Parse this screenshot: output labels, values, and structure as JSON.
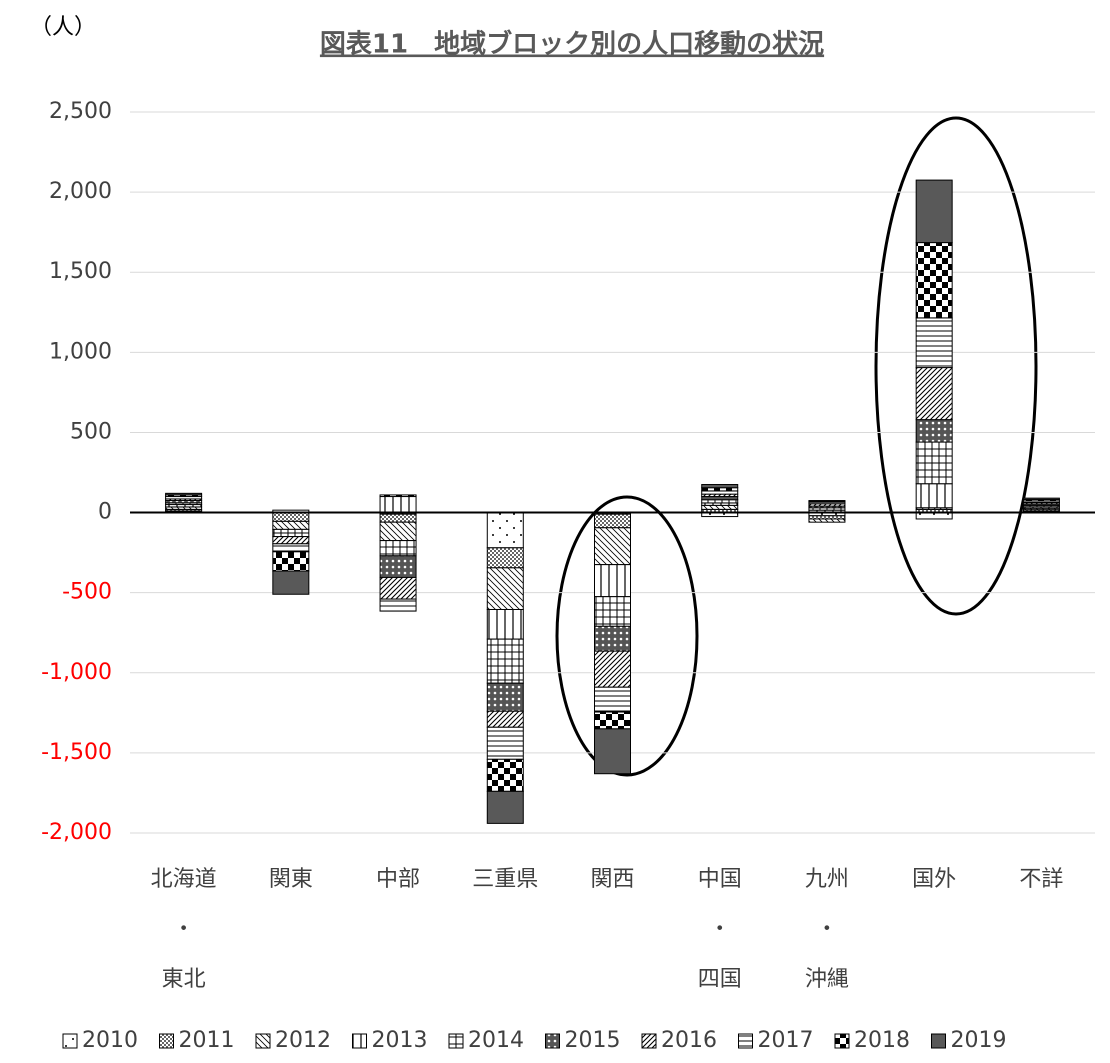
{
  "chart_data": {
    "type": "stacked-bar",
    "title": "図表11　地域ブロック別の人口移動の状況",
    "unit_label": "（人）",
    "categories": [
      [
        "北海道",
        "・",
        "東北"
      ],
      [
        "関東"
      ],
      [
        "中部"
      ],
      [
        "三重県"
      ],
      [
        "関西"
      ],
      [
        "中国",
        "・",
        "四国"
      ],
      [
        "九州",
        "・",
        "沖縄"
      ],
      [
        "国外"
      ],
      [
        "不詳"
      ]
    ],
    "series": [
      {
        "name": "2010",
        "color": "#000000",
        "pattern": "sparse-dots",
        "values": [
          10,
          15,
          -10,
          -220,
          -10,
          -25,
          -20,
          -40,
          9
        ]
      },
      {
        "name": "2011",
        "color": "#000000",
        "pattern": "dense-dots",
        "values": [
          10,
          -55,
          -50,
          -125,
          -85,
          20,
          -20,
          20,
          9
        ]
      },
      {
        "name": "2012",
        "color": "#000000",
        "pattern": "diagonal",
        "values": [
          15,
          -50,
          -115,
          -260,
          -230,
          25,
          -20,
          10,
          9
        ]
      },
      {
        "name": "2013",
        "color": "#000000",
        "pattern": "vertical",
        "values": [
          15,
          0,
          100,
          -185,
          -200,
          15,
          15,
          150,
          9
        ]
      },
      {
        "name": "2014",
        "color": "#000000",
        "pattern": "grid",
        "values": [
          10,
          -45,
          -95,
          -275,
          -185,
          20,
          15,
          260,
          9
        ]
      },
      {
        "name": "2015",
        "color": "#000000",
        "pattern": "dark-dots",
        "values": [
          15,
          0,
          -135,
          -175,
          -155,
          20,
          10,
          140,
          9
        ]
      },
      {
        "name": "2016",
        "color": "#000000",
        "pattern": "hatch",
        "values": [
          10,
          -45,
          -135,
          -100,
          -225,
          15,
          15,
          325,
          9
        ]
      },
      {
        "name": "2017",
        "color": "#000000",
        "pattern": "horizontal",
        "values": [
          15,
          -50,
          -75,
          -200,
          -155,
          20,
          10,
          310,
          9
        ]
      },
      {
        "name": "2018",
        "color": "#000000",
        "pattern": "checker",
        "values": [
          10,
          -120,
          10,
          -200,
          -105,
          20,
          5,
          470,
          9
        ]
      },
      {
        "name": "2019",
        "color": "#595959",
        "pattern": "solid",
        "values": [
          10,
          -145,
          0,
          -200,
          -280,
          20,
          5,
          390,
          9
        ]
      }
    ],
    "ylim": [
      -2000,
      2500
    ],
    "yticks": [
      {
        "value": -2000,
        "label": "-2,000"
      },
      {
        "value": -1500,
        "label": "-1,500"
      },
      {
        "value": -1000,
        "label": "-1,000"
      },
      {
        "value": -500,
        "label": "-500"
      },
      0,
      {
        "value": 500,
        "label": "500"
      },
      {
        "value": 1000,
        "label": "1,000"
      },
      {
        "value": 1500,
        "label": "1,500"
      },
      {
        "value": 2000,
        "label": "2,000"
      },
      {
        "value": 2500,
        "label": "2,500"
      }
    ],
    "negative_tick_color": "#ff0000",
    "grid": true,
    "legend": "bottom"
  }
}
